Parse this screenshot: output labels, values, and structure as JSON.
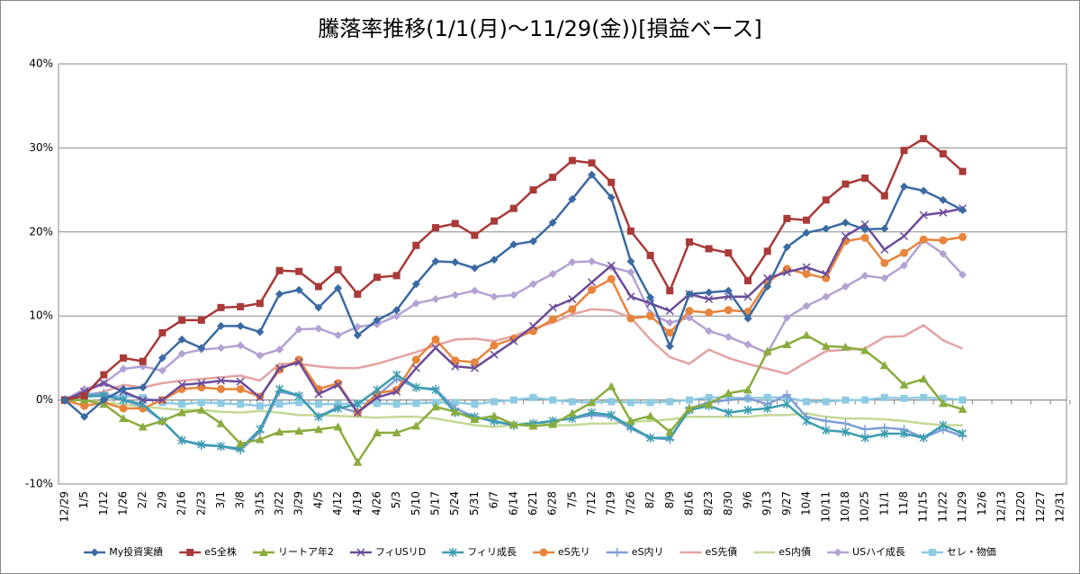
{
  "chart_data": {
    "type": "line",
    "title": "騰落率推移(1/1(月)～11/29(金))[損益ベース]",
    "categories": [
      "12/29",
      "1/5",
      "1/12",
      "1/26",
      "2/2",
      "2/9",
      "2/16",
      "2/23",
      "3/1",
      "3/8",
      "3/15",
      "3/22",
      "3/29",
      "4/5",
      "4/12",
      "4/19",
      "4/26",
      "5/3",
      "5/10",
      "5/17",
      "5/24",
      "5/31",
      "6/7",
      "6/14",
      "6/21",
      "6/28",
      "7/5",
      "7/12",
      "7/19",
      "7/26",
      "8/2",
      "8/9",
      "8/16",
      "8/23",
      "8/30",
      "9/6",
      "9/13",
      "9/27",
      "10/4",
      "10/11",
      "10/18",
      "10/25",
      "11/1",
      "11/8",
      "11/15",
      "11/22",
      "11/29",
      "12/6",
      "12/13",
      "12/20",
      "12/27",
      "12/31"
    ],
    "ylim": [
      -10,
      40
    ],
    "yticks": [
      {
        "value": -10,
        "label": "-10%"
      },
      {
        "value": 0,
        "label": "0%"
      },
      {
        "value": 10,
        "label": "10%"
      },
      {
        "value": 20,
        "label": "20%"
      },
      {
        "value": 30,
        "label": "30%"
      },
      {
        "value": 40,
        "label": "40%"
      }
    ],
    "grid": true,
    "legend": "bottom",
    "series": [
      {
        "name": "My投資実績",
        "color": "#3b6aa3",
        "marker": "diamond",
        "values": [
          0,
          -2,
          0,
          1.3,
          1.5,
          5,
          7.2,
          6.2,
          8.8,
          8.8,
          8.1,
          12.6,
          13.1,
          11,
          13.3,
          7.7,
          9.5,
          10.7,
          13.8,
          16.5,
          16.4,
          15.7,
          16.7,
          18.5,
          18.9,
          21.1,
          23.9,
          26.8,
          24.1,
          16.5,
          12.2,
          6.4,
          12.6,
          12.8,
          13,
          9.7,
          13.5,
          18.2,
          19.9,
          20.4,
          21.1,
          20.3,
          20.4,
          25.4,
          24.9,
          23.8,
          22.6,
          null,
          null,
          null,
          null,
          null
        ]
      },
      {
        "name": "eS全株",
        "color": "#a83a38",
        "marker": "square",
        "values": [
          0,
          0.5,
          3,
          5,
          4.6,
          8,
          9.5,
          9.5,
          11,
          11.1,
          11.5,
          15.4,
          15.3,
          13.5,
          15.5,
          12.6,
          14.6,
          14.8,
          18.4,
          20.5,
          21,
          19.6,
          21.3,
          22.8,
          25,
          26.5,
          28.5,
          28.2,
          25.9,
          20.1,
          17.2,
          13,
          18.8,
          18,
          17.5,
          14.2,
          17.7,
          21.6,
          21.4,
          23.8,
          25.7,
          26.4,
          24.3,
          29.7,
          31.1,
          29.3,
          27.2,
          null,
          null,
          null,
          null,
          null
        ]
      },
      {
        "name": "リートア年2",
        "color": "#8aac3e",
        "marker": "triangle",
        "values": [
          0,
          0,
          -0.5,
          -2.2,
          -3.2,
          -2.5,
          -1.5,
          -1.2,
          -2.8,
          -5.2,
          -4.7,
          -3.8,
          -3.7,
          -3.5,
          -3.2,
          -7.4,
          -3.9,
          -3.9,
          -3.1,
          -0.8,
          -1.4,
          -2.3,
          -1.9,
          -2.9,
          -3.1,
          -2.9,
          -1.6,
          -0.3,
          1.6,
          -2.5,
          -1.9,
          -3.8,
          -1,
          -0.5,
          0.8,
          1.2,
          5.8,
          6.6,
          7.7,
          6.4,
          6.3,
          5.9,
          4.1,
          1.8,
          2.5,
          -0.4,
          -1.1,
          null,
          null,
          null,
          null,
          null
        ]
      },
      {
        "name": "フィUSリD",
        "color": "#6b4c9a",
        "marker": "x",
        "values": [
          0,
          1,
          2,
          1,
          0,
          0,
          1.8,
          2,
          2.3,
          2.2,
          0.3,
          3.8,
          4.5,
          0.7,
          1.8,
          -1.5,
          0.3,
          1,
          3.8,
          6.2,
          4,
          3.8,
          5.4,
          7,
          8.8,
          11,
          12,
          14,
          16,
          12.3,
          11.5,
          10.6,
          12.6,
          12,
          12.3,
          12.3,
          14.5,
          15.2,
          15.8,
          15,
          19.5,
          20.9,
          17.9,
          19.5,
          22,
          22.3,
          22.8,
          null,
          null,
          null,
          null,
          null
        ]
      },
      {
        "name": "フィリ成長",
        "color": "#3c9db0",
        "marker": "star",
        "values": [
          0,
          0.5,
          0.5,
          0,
          -0.5,
          -2.5,
          -4.8,
          -5.3,
          -5.5,
          -5.8,
          -3.5,
          1.3,
          0.5,
          -2,
          -1,
          -0.5,
          1.2,
          3,
          1.5,
          1.2,
          -1.5,
          -2,
          -2.5,
          -3,
          -2.8,
          -2.5,
          -2.2,
          -1.5,
          -1.8,
          -3.2,
          -4.5,
          -4.5,
          -1.2,
          -0.7,
          -1.5,
          -1.2,
          -1,
          -0.5,
          -2.5,
          -3.6,
          -3.8,
          -4.5,
          -4,
          -4,
          -4.5,
          -3,
          -4,
          null,
          null,
          null,
          null,
          null
        ]
      },
      {
        "name": "eS先リ",
        "color": "#e8843c",
        "marker": "circle",
        "values": [
          0,
          -0.7,
          -0.3,
          -1,
          -1,
          0,
          1.3,
          1.5,
          1.3,
          1.3,
          0.4,
          3.6,
          4.8,
          1.3,
          2,
          -1.5,
          0.8,
          1.2,
          4.8,
          7.2,
          4.7,
          4.5,
          6.5,
          7.3,
          8.2,
          9.6,
          10.8,
          13.1,
          14.4,
          9.7,
          10,
          8,
          10.6,
          10.4,
          10.7,
          10.5,
          14,
          15.6,
          15,
          14.5,
          18.9,
          19.3,
          16.3,
          17.5,
          19.1,
          19,
          19.4,
          null,
          null,
          null,
          null,
          null
        ]
      },
      {
        "name": "eS内リ",
        "color": "#7f9fd6",
        "marker": "plus",
        "values": [
          0,
          0.7,
          0.8,
          0,
          -0.8,
          -2.5,
          -4.8,
          -5.4,
          -5.5,
          -6,
          -3.8,
          1,
          0.5,
          -2,
          -0.8,
          -1.5,
          0.5,
          2.5,
          1.5,
          1.3,
          -1,
          -2,
          -2.6,
          -3,
          -2.8,
          -2.5,
          -2.2,
          -1.8,
          -2,
          -3.4,
          -4.5,
          -4.7,
          -1,
          -0.3,
          0,
          0.2,
          -0.5,
          0.6,
          -2,
          -2.5,
          -2.8,
          -3.5,
          -3.3,
          -3.5,
          -4.5,
          -3.5,
          -4.3,
          null,
          null,
          null,
          null,
          null
        ]
      },
      {
        "name": "eS先債",
        "color": "#e3a3a1",
        "marker": "none",
        "values": [
          0,
          0.5,
          1,
          1.8,
          1.5,
          2,
          2.3,
          2.5,
          2.7,
          2.9,
          2.3,
          4.3,
          4.3,
          4,
          3.8,
          3.8,
          4.3,
          5,
          5.7,
          6.5,
          7.2,
          7.3,
          7,
          7.6,
          8.5,
          9.2,
          10.2,
          10.8,
          10.7,
          9.8,
          7.2,
          5.1,
          4.3,
          6,
          5,
          4.3,
          3.7,
          3.1,
          4.5,
          5.8,
          6,
          6.1,
          7.5,
          7.6,
          8.9,
          7.1,
          6.1,
          null,
          null,
          null,
          null,
          null
        ]
      },
      {
        "name": "eS内債",
        "color": "#c3d996",
        "marker": "none",
        "values": [
          0,
          0,
          -0.3,
          -0.5,
          -0.8,
          -1,
          -1.2,
          -1.2,
          -1.4,
          -1.5,
          -1.3,
          -1.5,
          -1.8,
          -1.8,
          -1.9,
          -2,
          -2.1,
          -2,
          -2,
          -2.2,
          -2.6,
          -3,
          -3.2,
          -3,
          -2.6,
          -3,
          -3,
          -2.8,
          -2.8,
          -2.6,
          -2.5,
          -2.3,
          -2,
          -2,
          -2,
          -2,
          -1.8,
          -1.8,
          -1.6,
          -2,
          -2.2,
          -2.2,
          -2.3,
          -2.5,
          -2.8,
          -3,
          -3,
          null,
          null,
          null,
          null,
          null
        ]
      },
      {
        "name": "USハイ成長",
        "color": "#b3a2d2",
        "marker": "diamond",
        "values": [
          0,
          1.3,
          2,
          3.7,
          4,
          3.5,
          5.5,
          6,
          6.2,
          6.5,
          5.3,
          6,
          8.4,
          8.5,
          7.7,
          8.7,
          9,
          10,
          11.5,
          12,
          12.5,
          13,
          12.3,
          12.5,
          13.8,
          15,
          16.4,
          16.5,
          15.8,
          15.2,
          10.3,
          9.2,
          9.8,
          8.2,
          7.5,
          6.6,
          5.6,
          9.8,
          11.2,
          12.3,
          13.5,
          14.8,
          14.5,
          16,
          19,
          17.4,
          14.9,
          null,
          null,
          null,
          null,
          null
        ]
      },
      {
        "name": "セレ・物価",
        "color": "#8ecbe2",
        "marker": "square",
        "values": [
          0,
          0.3,
          0.5,
          0.5,
          0.3,
          -0.3,
          -0.5,
          -0.3,
          -0.4,
          -0.5,
          -0.7,
          -0.5,
          -0.3,
          -0.5,
          -0.5,
          -0.4,
          -0.4,
          -0.5,
          -0.4,
          -0.3,
          -0.3,
          -0.5,
          -0.2,
          0,
          0.3,
          0,
          -0.2,
          -0.3,
          -0.2,
          -0.3,
          -0.3,
          -0.2,
          0,
          0.3,
          0.3,
          0.2,
          0.3,
          0.3,
          -0.2,
          -0.2,
          0,
          0,
          0.3,
          0.2,
          0.3,
          0.2,
          0,
          null,
          null,
          null,
          null,
          null
        ]
      }
    ]
  }
}
